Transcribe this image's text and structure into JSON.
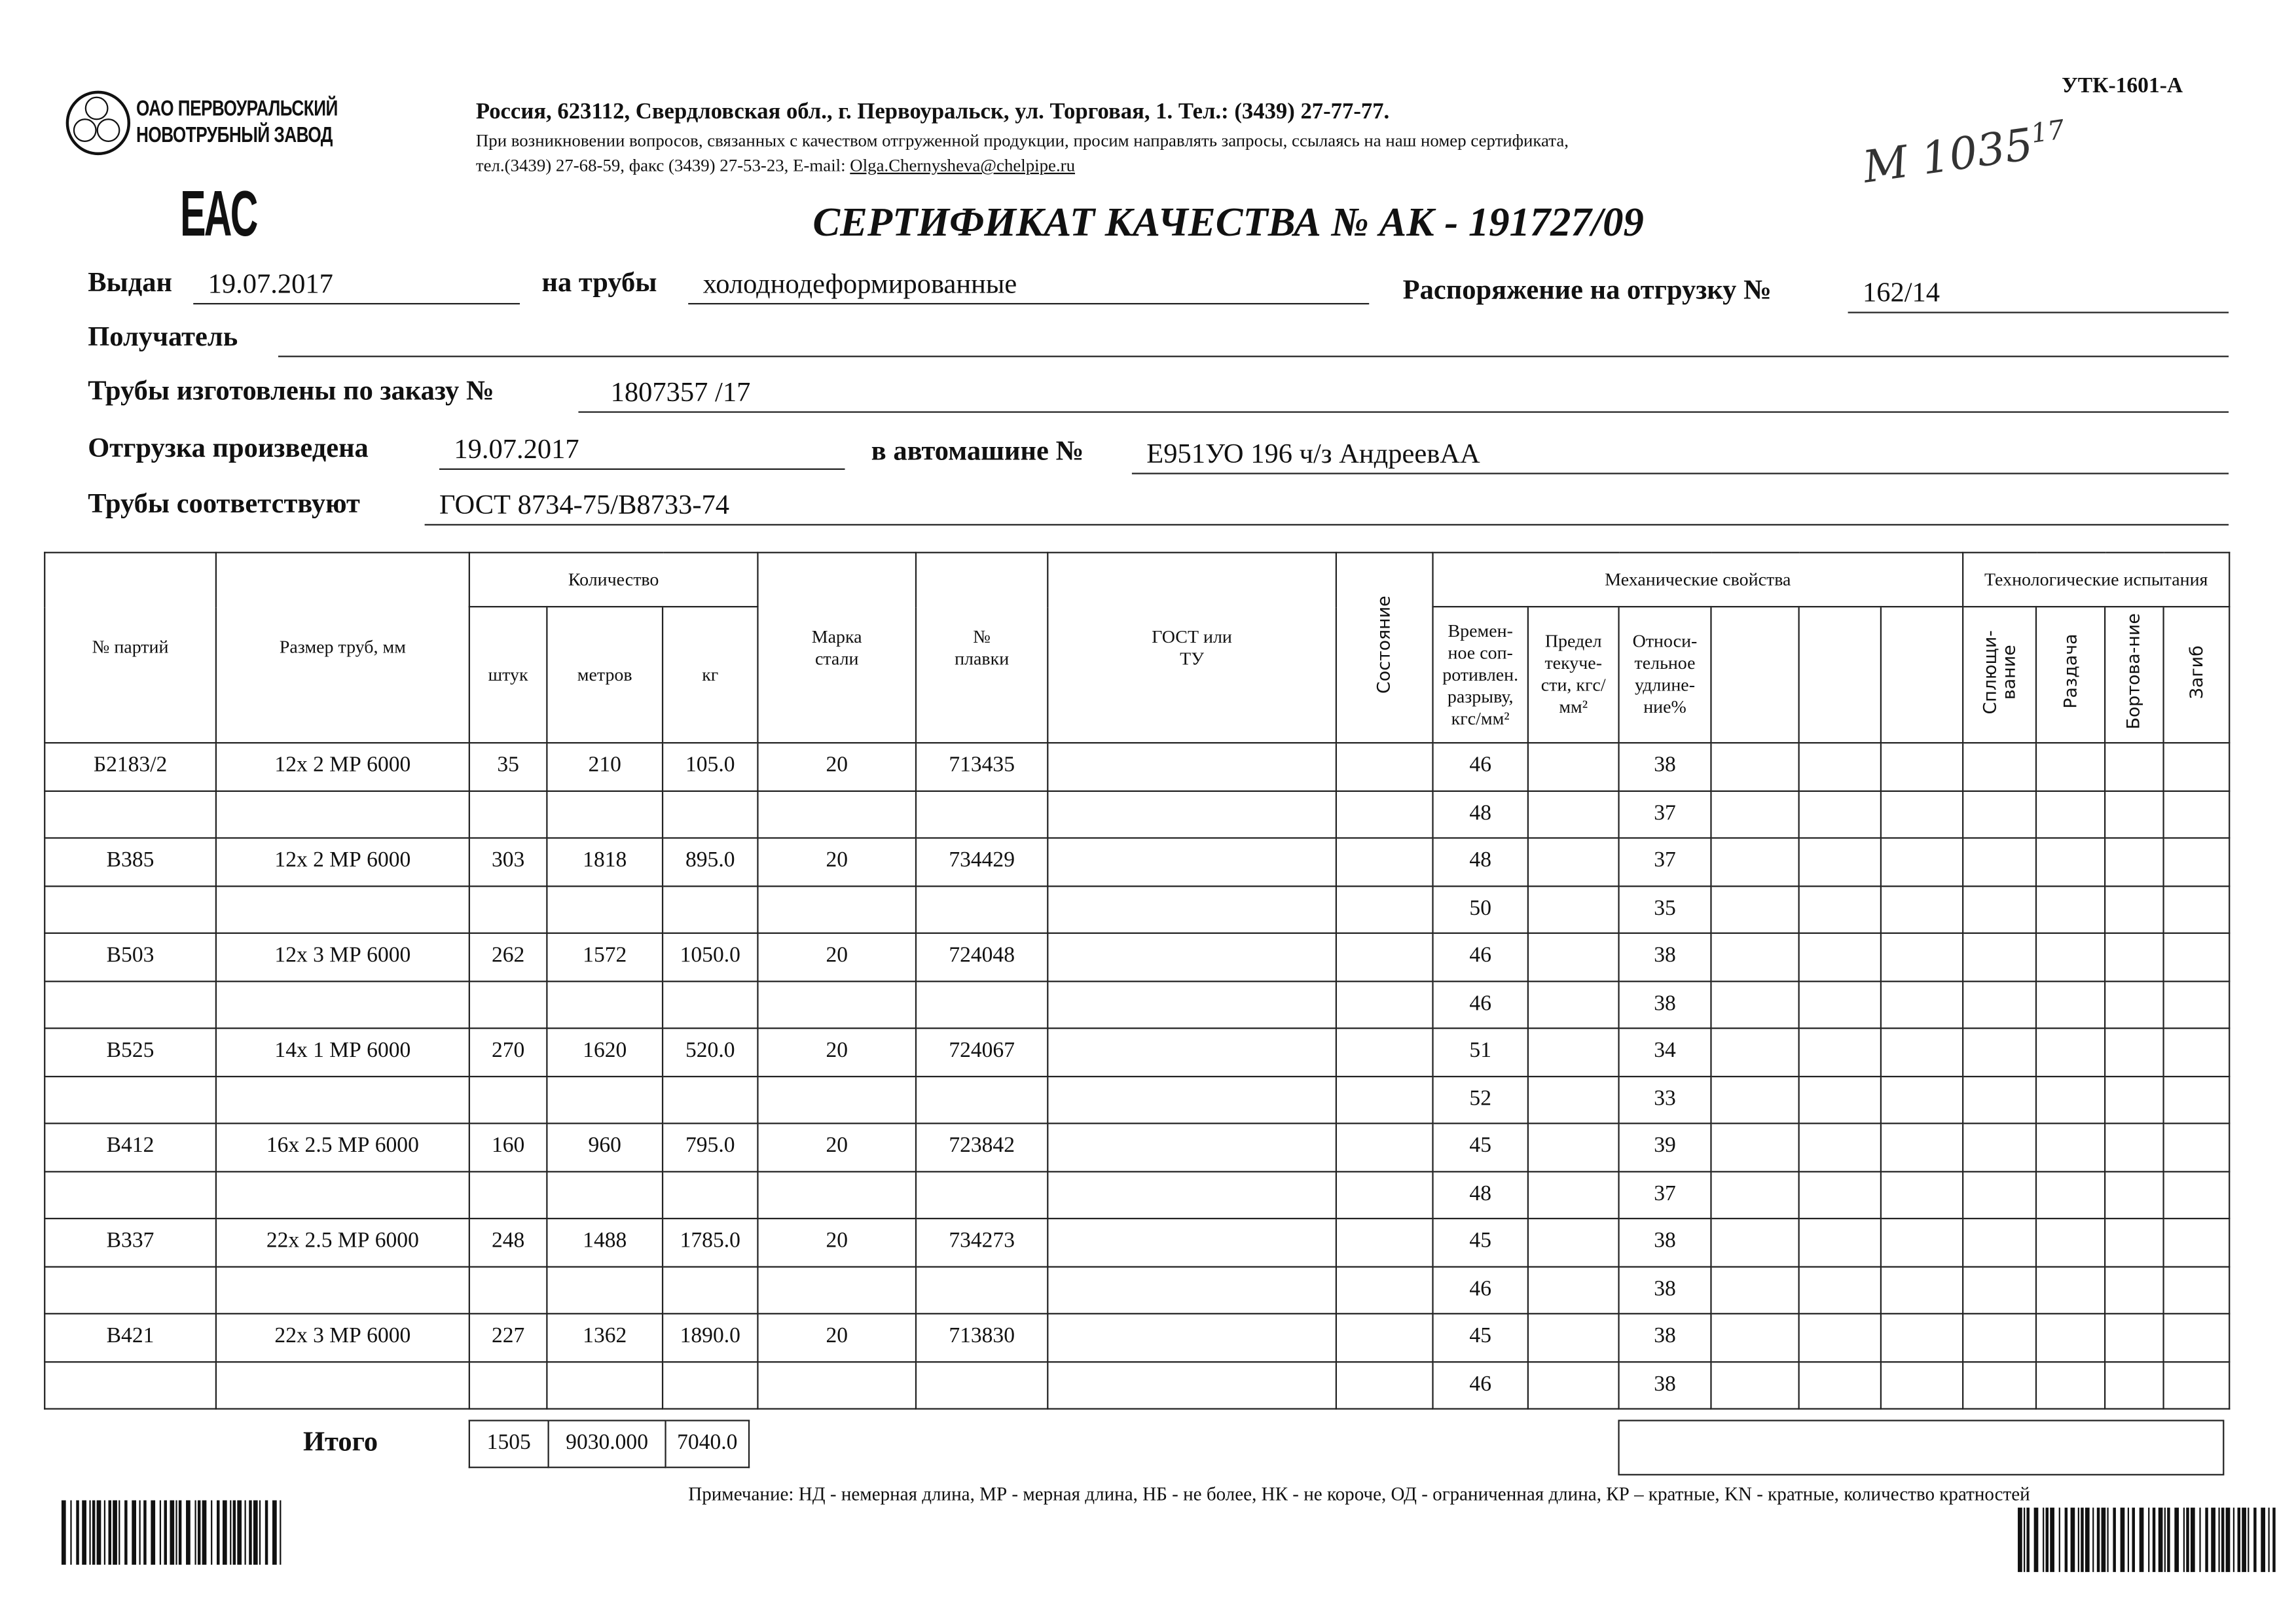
{
  "company": {
    "logo_lines": [
      "ОАО ПЕРВОУРАЛЬСКИЙ",
      "НОВОТРУБНЫЙ ЗАВОД"
    ],
    "mark": "EAC"
  },
  "address": {
    "line1": "Россия, 623112, Свердловская обл., г. Первоуральск, ул. Торговая, 1. Тел.: (3439) 27-77-77.",
    "line2": "При возникновении вопросов, связанных с качеством отгруженной продукции, просим направлять запросы, ссылаясь на наш номер сертификата,",
    "line3_prefix": "тел.(3439) 27-68-59, факс (3439) 27-53-23,  E-mail: ",
    "email": "Olga.Chernysheva@chelpipe.ru"
  },
  "form_code": "УТК-1601-А",
  "handwritten_note": {
    "main": "М 1035",
    "sup": "17"
  },
  "title": "СЕРТИФИКАТ КАЧЕСТВА   №  АК -  191727/09",
  "fields": {
    "issued_label": "Выдан",
    "issued_value": "19.07.2017",
    "pipes_label": "на трубы",
    "pipes_value": "холоднодеформированные",
    "order_ship_label": "Распоряжение на отгрузку №",
    "order_ship_value": "162/14",
    "recipient_label": "Получатель",
    "recipient_value": "",
    "made_order_label": "Трубы изготовлены по заказу №",
    "made_order_value": "1807357   /17",
    "shipment_label": "Отгрузка произведена",
    "shipment_value": "19.07.2017",
    "vehicle_label": "в автомашине №",
    "vehicle_value": "Е951УО 196 ч/з АндреевАА",
    "conform_label": "Трубы соответствуют",
    "conform_value": "ГОСТ 8734-75/В8733-74"
  },
  "table": {
    "headers": {
      "batch": "№ партий",
      "size": "Размер труб, мм",
      "quantity": "Количество",
      "pcs": "штук",
      "meters": "метров",
      "kg": "кг",
      "steel": "Марка стали",
      "heat": "№ плавки",
      "gost": "ГОСТ или ТУ",
      "state": "Состояние",
      "mech": "Механические свойства",
      "tensile": "Времен-ное соп-ротивлен. разрыву, кгс/мм²",
      "yield": "Предел текуче-сти, кгс/мм²",
      "elong": "Относи-тельное удлине-ние%",
      "tech": "Технологические испытания",
      "flatten": "Сплющи-вание",
      "expand": "Раздача",
      "flange": "Бортова-ние",
      "bend": "Загиб"
    },
    "batches": [
      {
        "batch": "Б2183/2",
        "size": "12х 2 МР 6000",
        "pcs": "35",
        "meters": "210",
        "kg": "105.0",
        "steel": "20",
        "heat": "713435",
        "mech": [
          [
            "46",
            "38"
          ],
          [
            "48",
            "37"
          ]
        ]
      },
      {
        "batch": "В385",
        "size": "12х 2 МР 6000",
        "pcs": "303",
        "meters": "1818",
        "kg": "895.0",
        "steel": "20",
        "heat": "734429",
        "mech": [
          [
            "48",
            "37"
          ],
          [
            "50",
            "35"
          ]
        ]
      },
      {
        "batch": "В503",
        "size": "12х 3 МР 6000",
        "pcs": "262",
        "meters": "1572",
        "kg": "1050.0",
        "steel": "20",
        "heat": "724048",
        "mech": [
          [
            "46",
            "38"
          ],
          [
            "46",
            "38"
          ]
        ]
      },
      {
        "batch": "В525",
        "size": "14х 1 МР 6000",
        "pcs": "270",
        "meters": "1620",
        "kg": "520.0",
        "steel": "20",
        "heat": "724067",
        "mech": [
          [
            "51",
            "34"
          ],
          [
            "52",
            "33"
          ]
        ]
      },
      {
        "batch": "В412",
        "size": "16х 2.5 МР 6000",
        "pcs": "160",
        "meters": "960",
        "kg": "795.0",
        "steel": "20",
        "heat": "723842",
        "mech": [
          [
            "45",
            "39"
          ],
          [
            "48",
            "37"
          ]
        ]
      },
      {
        "batch": "В337",
        "size": "22х 2.5 МР 6000",
        "pcs": "248",
        "meters": "1488",
        "kg": "1785.0",
        "steel": "20",
        "heat": "734273",
        "mech": [
          [
            "45",
            "38"
          ],
          [
            "46",
            "38"
          ]
        ]
      },
      {
        "batch": "В421",
        "size": "22х 3 МР 6000",
        "pcs": "227",
        "meters": "1362",
        "kg": "1890.0",
        "steel": "20",
        "heat": "713830",
        "mech": [
          [
            "45",
            "38"
          ],
          [
            "46",
            "38"
          ]
        ]
      }
    ],
    "total": {
      "label": "Итого",
      "pcs": "1505",
      "meters": "9030.000",
      "kg": "7040.0"
    }
  },
  "note": "Примечание: НД - немерная длина, МР - мерная длина, НБ - не более, НК - не короче, ОД - ограниченная длина, КР – кратные, KN - кратные, количество кратностей"
}
